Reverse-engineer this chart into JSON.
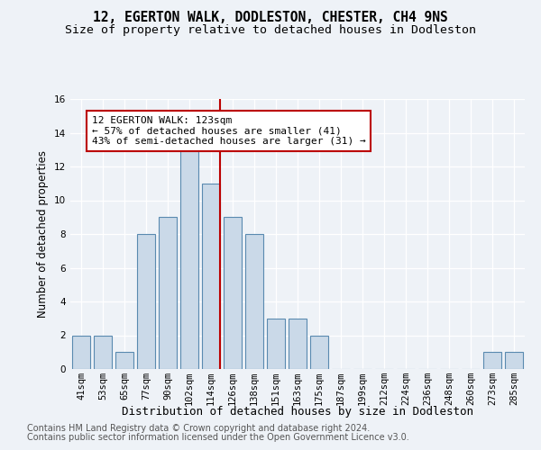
{
  "title1": "12, EGERTON WALK, DODLESTON, CHESTER, CH4 9NS",
  "title2": "Size of property relative to detached houses in Dodleston",
  "xlabel": "Distribution of detached houses by size in Dodleston",
  "ylabel": "Number of detached properties",
  "bin_labels": [
    "41sqm",
    "53sqm",
    "65sqm",
    "77sqm",
    "90sqm",
    "102sqm",
    "114sqm",
    "126sqm",
    "138sqm",
    "151sqm",
    "163sqm",
    "175sqm",
    "187sqm",
    "199sqm",
    "212sqm",
    "224sqm",
    "236sqm",
    "248sqm",
    "260sqm",
    "273sqm",
    "285sqm"
  ],
  "counts": [
    2,
    2,
    1,
    8,
    9,
    13,
    11,
    9,
    8,
    3,
    3,
    2,
    0,
    0,
    0,
    0,
    0,
    0,
    0,
    1,
    1
  ],
  "bar_facecolor": "#cad9e8",
  "bar_edgecolor": "#5a8ab0",
  "property_size_bin": 6,
  "vline_color": "#bb0000",
  "ylim": [
    0,
    16
  ],
  "yticks": [
    0,
    2,
    4,
    6,
    8,
    10,
    12,
    14,
    16
  ],
  "annotation_text": "12 EGERTON WALK: 123sqm\n← 57% of detached houses are smaller (41)\n43% of semi-detached houses are larger (31) →",
  "annotation_box_edgecolor": "#bb0000",
  "annotation_box_facecolor": "#ffffff",
  "footer1": "Contains HM Land Registry data © Crown copyright and database right 2024.",
  "footer2": "Contains public sector information licensed under the Open Government Licence v3.0.",
  "background_color": "#eef2f7",
  "grid_color": "#ffffff",
  "title_fontsize": 10.5,
  "subtitle_fontsize": 9.5,
  "axis_label_fontsize": 8.5,
  "tick_fontsize": 7.5,
  "footer_fontsize": 7.0,
  "annotation_fontsize": 8.0
}
